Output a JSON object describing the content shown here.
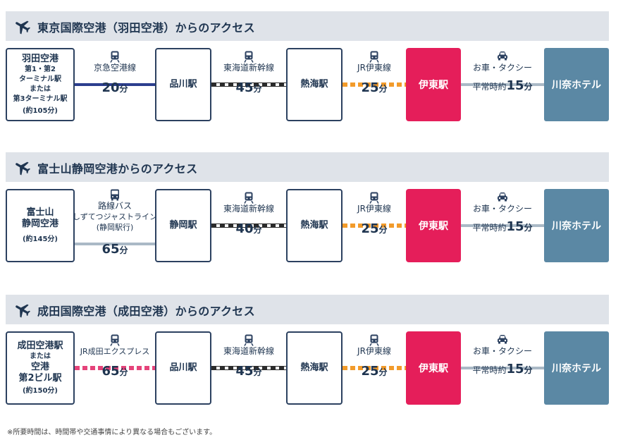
{
  "routes": [
    {
      "title": "東京国際空港（羽田空港）からのアクセス",
      "origin": {
        "name": "羽田空港",
        "sub1": "第1・第2",
        "sub2": "ターミナル駅",
        "sub3": "または",
        "sub4": "第3ターミナル駅",
        "note": "(約105分)"
      },
      "leg1": {
        "label": "京急空港線",
        "min": "20",
        "unit": "分"
      },
      "station1": "品川駅",
      "leg2": {
        "label": "東海道新幹線",
        "min": "45",
        "unit": "分"
      },
      "station2": "熱海駅",
      "leg3": {
        "label": "JR伊東線",
        "min": "25",
        "unit": "分"
      },
      "ito": "伊東駅",
      "car": {
        "label": "お車・タクシー",
        "prefix": "平常時約",
        "min": "15",
        "unit": "分"
      },
      "dest": "川奈ホテル"
    },
    {
      "title": "富士山静岡空港からのアクセス",
      "origin": {
        "name1": "富士山",
        "name2": "静岡空港",
        "note": "(約145分)"
      },
      "leg1": {
        "label1": "路線バス",
        "label2": "しずてつジャストライン",
        "label3": "(静岡駅行)",
        "min": "65",
        "unit": "分"
      },
      "station1": "静岡駅",
      "leg2": {
        "label": "東海道新幹線",
        "min": "40",
        "unit": "分"
      },
      "station2": "熱海駅",
      "leg3": {
        "label": "JR伊東線",
        "min": "25",
        "unit": "分"
      },
      "ito": "伊東駅",
      "car": {
        "label": "お車・タクシー",
        "prefix": "平常時約",
        "min": "15",
        "unit": "分"
      },
      "dest": "川奈ホテル"
    },
    {
      "title": "成田国際空港（成田空港）からのアクセス",
      "origin": {
        "name1": "成田空港駅",
        "sub": "または",
        "name2": "空港",
        "name3": "第2ビル駅",
        "note": "(約150分)"
      },
      "leg1": {
        "label": "JR成田エクスプレス",
        "min": "65",
        "unit": "分"
      },
      "station1": "品川駅",
      "leg2": {
        "label": "東海道新幹線",
        "min": "45",
        "unit": "分"
      },
      "station2": "熱海駅",
      "leg3": {
        "label": "JR伊東線",
        "min": "25",
        "unit": "分"
      },
      "ito": "伊東駅",
      "car": {
        "label": "お車・タクシー",
        "prefix": "平常時約",
        "min": "15",
        "unit": "分"
      },
      "dest": "川奈ホテル"
    }
  ],
  "footnote": "※所要時間は、時間帯や交通事情により異なる場合もございます。",
  "colors": {
    "header_bg": "#dfe3e9",
    "navy": "#1f3550",
    "ito_station": "#e51e5a",
    "hotel": "#5b88a4",
    "keikyu": "#2c3e8e",
    "jr_ito": "#f29b2b",
    "narita_express": "#e5437a",
    "bus": "#aab9c6"
  },
  "icons": {
    "plane": "airplane-icon",
    "train": "train-icon",
    "bus": "bus-icon",
    "car": "car-icon"
  }
}
